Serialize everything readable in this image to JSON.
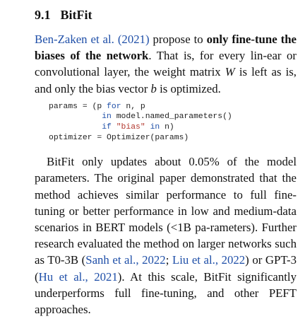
{
  "section": {
    "number": "9.1",
    "title": "BitFit"
  },
  "para1": {
    "cite_text": "Ben-Zaken et al.",
    "cite_year": "2021",
    "t1": " propose to ",
    "bold": "only fine-tune the biases of the network",
    "t2": ". That is, for every lin-ear or convolutional layer, the weight matrix ",
    "var_w": "W",
    "t3": " is left as is, and only the bias vector ",
    "var_b": "b",
    "t4": " is optimized."
  },
  "code": {
    "l1a": "params = (p ",
    "l1kw": "for",
    "l1b": " n, p",
    "l2kw": "in",
    "l2b": " model.named_parameters()",
    "l3kw": "if",
    "l3str": "\"bias\"",
    "l3kw2": "in",
    "l3b": " n)",
    "l4": "optimizer = Optimizer(params)"
  },
  "para2": {
    "t1": "BitFit only updates about 0.05% of the model parameters. The original paper demonstrated that the method achieves similar performance to full fine-tuning or better performance in low and medium-data scenarios in BERT models (<1B pa-rameters). Further research evaluated the method on larger networks such as T0-3B (",
    "c1": "Sanh et al., 2022",
    "t2": "; ",
    "c2": "Liu et al., 2022",
    "t3": ") or GPT-3 (",
    "c3": "Hu et al., 2021",
    "t4": "). At this scale, BitFit significantly underperforms full fine-tuning, and other PEFT approaches."
  }
}
